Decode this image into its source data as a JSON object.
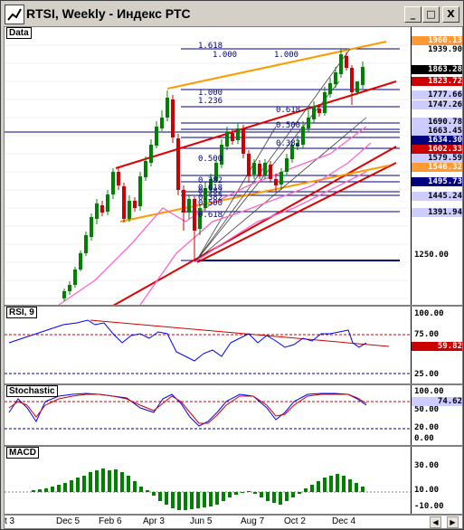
{
  "window": {
    "title": "RTSI, Weekly - Индекс РТС",
    "minimize": "_",
    "maximize": "□",
    "close": "X"
  },
  "panels": {
    "price": "Data",
    "rsi": "RSI, 9",
    "stochastic": "Stochastic",
    "macd": "MACD"
  },
  "price_ticks": [
    "1250.00"
  ],
  "price_tags": [
    {
      "text": "1960.13",
      "bg": "#ff9933",
      "fg": "#ffffff"
    },
    {
      "text": "1939.90",
      "bg": "#ffffff",
      "fg": "#000000"
    },
    {
      "text": "1863.28",
      "bg": "#000000",
      "fg": "#ffffff"
    },
    {
      "text": "1823.72",
      "bg": "#cc0000",
      "fg": "#ffffff"
    },
    {
      "text": "1777.66",
      "bg": "#ccccff",
      "fg": "#000000"
    },
    {
      "text": "1747.26",
      "bg": "#ccccff",
      "fg": "#000000"
    },
    {
      "text": "1690.78",
      "bg": "#ccccff",
      "fg": "#000000"
    },
    {
      "text": "1663.45",
      "bg": "#ccccff",
      "fg": "#000000"
    },
    {
      "text": "1634.30",
      "bg": "#000080",
      "fg": "#ffffff"
    },
    {
      "text": "1602.33",
      "bg": "#cc0000",
      "fg": "#ffffff"
    },
    {
      "text": "1579.59",
      "bg": "#ccccff",
      "fg": "#000000"
    },
    {
      "text": "1546.32",
      "bg": "#ff9933",
      "fg": "#ffffff"
    },
    {
      "text": "1495.73",
      "bg": "#000080",
      "fg": "#ffffff"
    },
    {
      "text": "1445.24",
      "bg": "#ccccff",
      "fg": "#000000"
    },
    {
      "text": "1391.94",
      "bg": "#ccccff",
      "fg": "#000000"
    }
  ],
  "fib_labels": [
    "1.000",
    "1.000",
    "1.000",
    "0.618",
    "0.500",
    "0.382",
    "0.500",
    "0.382",
    "0.618",
    "0.382",
    "0.382",
    "0.500",
    "0.618",
    "1.236",
    "1.618"
  ],
  "rsi_ticks": [
    "100.00",
    "75.00",
    "25.00"
  ],
  "rsi_tags": [
    {
      "text": "59.82",
      "bg": "#cc0000",
      "fg": "#ffffff"
    }
  ],
  "stoch_ticks": [
    "100.00",
    "50.00",
    "20.00",
    "0.00"
  ],
  "stoch_tags": [
    {
      "text": "74.62",
      "bg": "#ccccff",
      "fg": "#000000"
    }
  ],
  "macd_ticks": [
    "30.00",
    "10.00",
    "-10.00"
  ],
  "x_labels": [
    "t 3",
    "Dec 5",
    "Feb 6",
    "Apr 3",
    "Jun 5",
    "Aug 7",
    "Oct 2",
    "Dec 4"
  ],
  "colors": {
    "up": "#008000",
    "down": "#cc0000",
    "channel_red": "#e00000",
    "channel_orange": "#ff9900",
    "fib_blue": "#000080",
    "ma_pink": "#ff66cc",
    "rsi_line": "#0000ff",
    "stoch_k": "#0000ff",
    "stoch_d": "#cc0000",
    "macd_bar": "#008000"
  }
}
